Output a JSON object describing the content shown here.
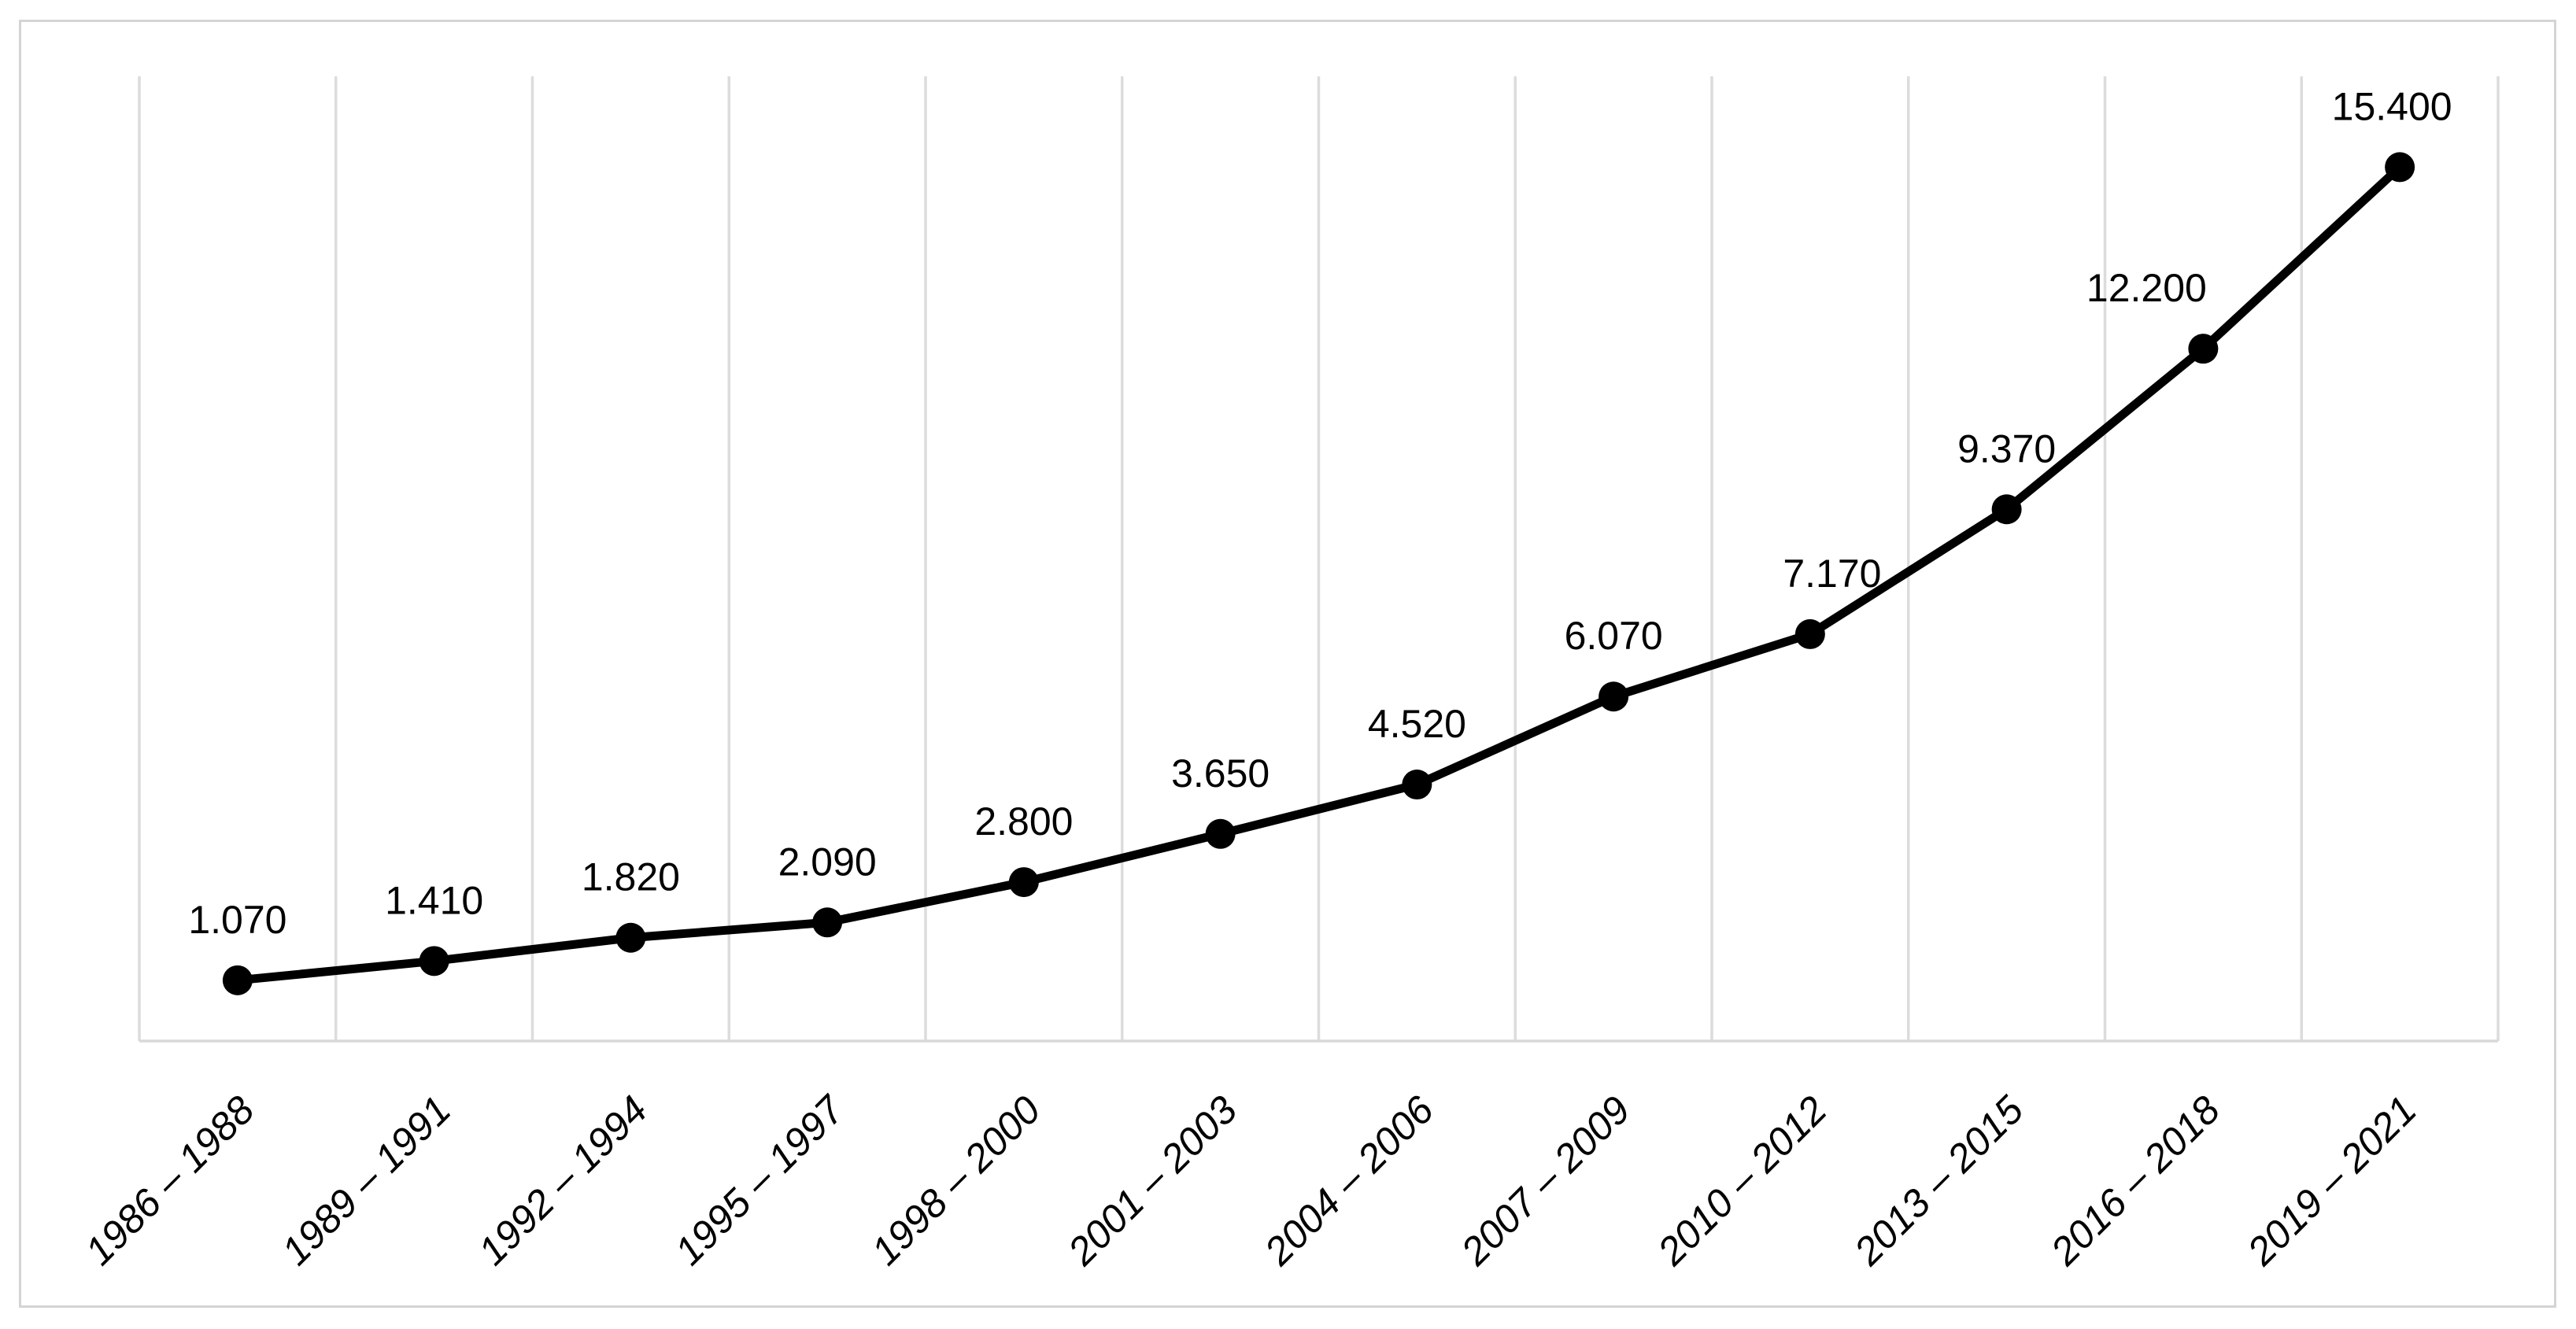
{
  "chart": {
    "background": "#ffffff",
    "frame_color": "#d4d4d4",
    "gridline_color": "#dcdcdc",
    "axis_line_color": "#d9d9d9",
    "series_color": "#000000",
    "label_color": "#000000"
  },
  "chart_data": {
    "type": "line",
    "title": "",
    "xlabel": "",
    "ylabel": "",
    "categories": [
      "1986 – 1988",
      "1989 – 1991",
      "1992 – 1994",
      "1995 – 1997",
      "1998 – 2000",
      "2001 – 2003",
      "2004 – 2006",
      "2007 – 2009",
      "2010 – 2012",
      "2013 – 2015",
      "2016 – 2018",
      "2019 – 2021"
    ],
    "series": [
      {
        "name": "",
        "values": [
          1070,
          1410,
          1820,
          2090,
          2800,
          3650,
          4520,
          6070,
          7170,
          9370,
          12200,
          15400
        ]
      }
    ],
    "point_labels": [
      "1.070",
      "1.410",
      "1.820",
      "2.090",
      "2.800",
      "3.650",
      "4.520",
      "6.070",
      "7.170",
      "9.370",
      "12.200",
      "15.400"
    ],
    "ylim": [
      0,
      17000
    ],
    "grid": "vertical-only",
    "legend": "none",
    "marker": "circle",
    "x_label_rotation": -45,
    "x_label_style": "italic",
    "label_dx": [
      0,
      0,
      0,
      0,
      0,
      0,
      0,
      0,
      28,
      0,
      -72,
      -10
    ]
  }
}
